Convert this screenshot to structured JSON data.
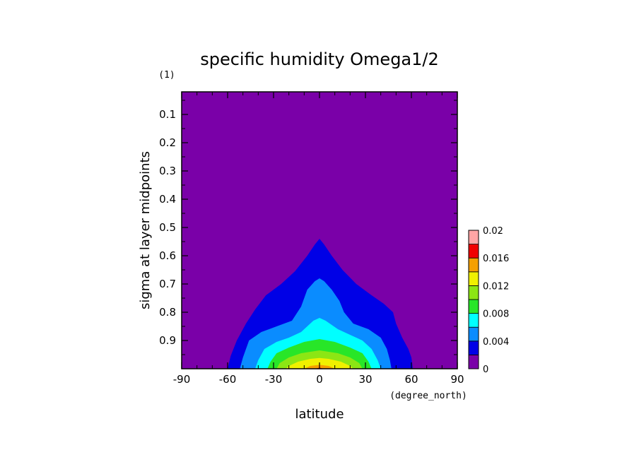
{
  "chart_data": {
    "type": "heatmap",
    "subtype": "filled-contour",
    "title": "specific humidity Omega1/2",
    "xlabel": "latitude",
    "x_units": "(degree_north)",
    "ylabel": "sigma at layer midpoints",
    "y_units": "(1)",
    "xlim": [
      -90,
      90
    ],
    "ylim": [
      1.0,
      0.02
    ],
    "x_ticks": [
      -90,
      -60,
      -30,
      0,
      30,
      60,
      90
    ],
    "x_tick_labels": [
      "-90",
      "-60",
      "-30",
      "0",
      "30",
      "60",
      "90"
    ],
    "y_ticks": [
      0.1,
      0.2,
      0.3,
      0.4,
      0.5,
      0.6,
      0.7,
      0.8,
      0.9
    ],
    "y_tick_labels": [
      "0.1",
      "0.2",
      "0.3",
      "0.4",
      "0.5",
      "0.6",
      "0.7",
      "0.8",
      "0.9"
    ],
    "colorbar": {
      "levels": [
        0,
        0.002,
        0.004,
        0.006,
        0.008,
        0.01,
        0.012,
        0.014,
        0.016,
        0.018,
        0.02
      ],
      "tick_labels": [
        "0",
        "0.004",
        "0.008",
        "0.012",
        "0.016",
        "0.02"
      ],
      "colors": [
        "#7a00a8",
        "#0000e6",
        "#0a8cff",
        "#00ffff",
        "#28e628",
        "#8ce614",
        "#f0f000",
        "#f5a000",
        "#f00000",
        "#ffa5a5"
      ]
    },
    "contours": [
      {
        "min_value": 0.002,
        "points": [
          [
            -60,
            1.0
          ],
          [
            -58,
            0.955
          ],
          [
            -54,
            0.9
          ],
          [
            -48,
            0.84
          ],
          [
            -42,
            0.79
          ],
          [
            -35,
            0.74
          ],
          [
            -25,
            0.7
          ],
          [
            -16,
            0.655
          ],
          [
            -8,
            0.6
          ],
          [
            -3,
            0.56
          ],
          [
            0,
            0.54
          ],
          [
            3,
            0.56
          ],
          [
            8,
            0.6
          ],
          [
            15,
            0.65
          ],
          [
            24,
            0.7
          ],
          [
            34,
            0.74
          ],
          [
            42,
            0.77
          ],
          [
            48,
            0.8
          ],
          [
            50,
            0.84
          ],
          [
            54,
            0.89
          ],
          [
            58,
            0.93
          ],
          [
            60,
            0.96
          ],
          [
            61,
            1.0
          ]
        ]
      },
      {
        "min_value": 0.004,
        "points": [
          [
            -52,
            1.0
          ],
          [
            -50,
            0.96
          ],
          [
            -46,
            0.9
          ],
          [
            -38,
            0.87
          ],
          [
            -28,
            0.85
          ],
          [
            -18,
            0.83
          ],
          [
            -12,
            0.78
          ],
          [
            -8,
            0.72
          ],
          [
            -3,
            0.69
          ],
          [
            0,
            0.68
          ],
          [
            3,
            0.69
          ],
          [
            8,
            0.72
          ],
          [
            13,
            0.76
          ],
          [
            16,
            0.8
          ],
          [
            22,
            0.84
          ],
          [
            32,
            0.86
          ],
          [
            40,
            0.89
          ],
          [
            44,
            0.93
          ],
          [
            46,
            0.97
          ],
          [
            47,
            1.0
          ]
        ]
      },
      {
        "min_value": 0.006,
        "points": [
          [
            -42,
            1.0
          ],
          [
            -40,
            0.97
          ],
          [
            -36,
            0.93
          ],
          [
            -28,
            0.905
          ],
          [
            -20,
            0.89
          ],
          [
            -12,
            0.87
          ],
          [
            -4,
            0.83
          ],
          [
            0,
            0.82
          ],
          [
            4,
            0.83
          ],
          [
            12,
            0.86
          ],
          [
            20,
            0.88
          ],
          [
            28,
            0.9
          ],
          [
            34,
            0.93
          ],
          [
            38,
            0.97
          ],
          [
            40,
            1.0
          ]
        ]
      },
      {
        "min_value": 0.008,
        "points": [
          [
            -34,
            1.0
          ],
          [
            -32,
            0.975
          ],
          [
            -28,
            0.945
          ],
          [
            -20,
            0.925
          ],
          [
            -10,
            0.905
          ],
          [
            0,
            0.895
          ],
          [
            10,
            0.905
          ],
          [
            20,
            0.925
          ],
          [
            28,
            0.945
          ],
          [
            32,
            0.975
          ],
          [
            34,
            1.0
          ]
        ]
      },
      {
        "min_value": 0.01,
        "points": [
          [
            -28,
            1.0
          ],
          [
            -26,
            0.98
          ],
          [
            -20,
            0.96
          ],
          [
            -12,
            0.945
          ],
          [
            0,
            0.935
          ],
          [
            12,
            0.945
          ],
          [
            20,
            0.96
          ],
          [
            26,
            0.98
          ],
          [
            28,
            1.0
          ]
        ]
      },
      {
        "min_value": 0.012,
        "points": [
          [
            -22,
            1.0
          ],
          [
            -20,
            0.99
          ],
          [
            -14,
            0.975
          ],
          [
            -6,
            0.965
          ],
          [
            0,
            0.962
          ],
          [
            6,
            0.965
          ],
          [
            14,
            0.975
          ],
          [
            20,
            0.99
          ],
          [
            22,
            1.0
          ]
        ]
      },
      {
        "min_value": 0.014,
        "points": [
          [
            -10,
            1.0
          ],
          [
            -6,
            0.99
          ],
          [
            0,
            0.986
          ],
          [
            6,
            0.99
          ],
          [
            10,
            1.0
          ]
        ]
      },
      {
        "min_value": 0.016,
        "points": [
          [
            -3,
            1.0
          ],
          [
            0,
            0.996
          ],
          [
            3,
            1.0
          ]
        ]
      }
    ]
  }
}
